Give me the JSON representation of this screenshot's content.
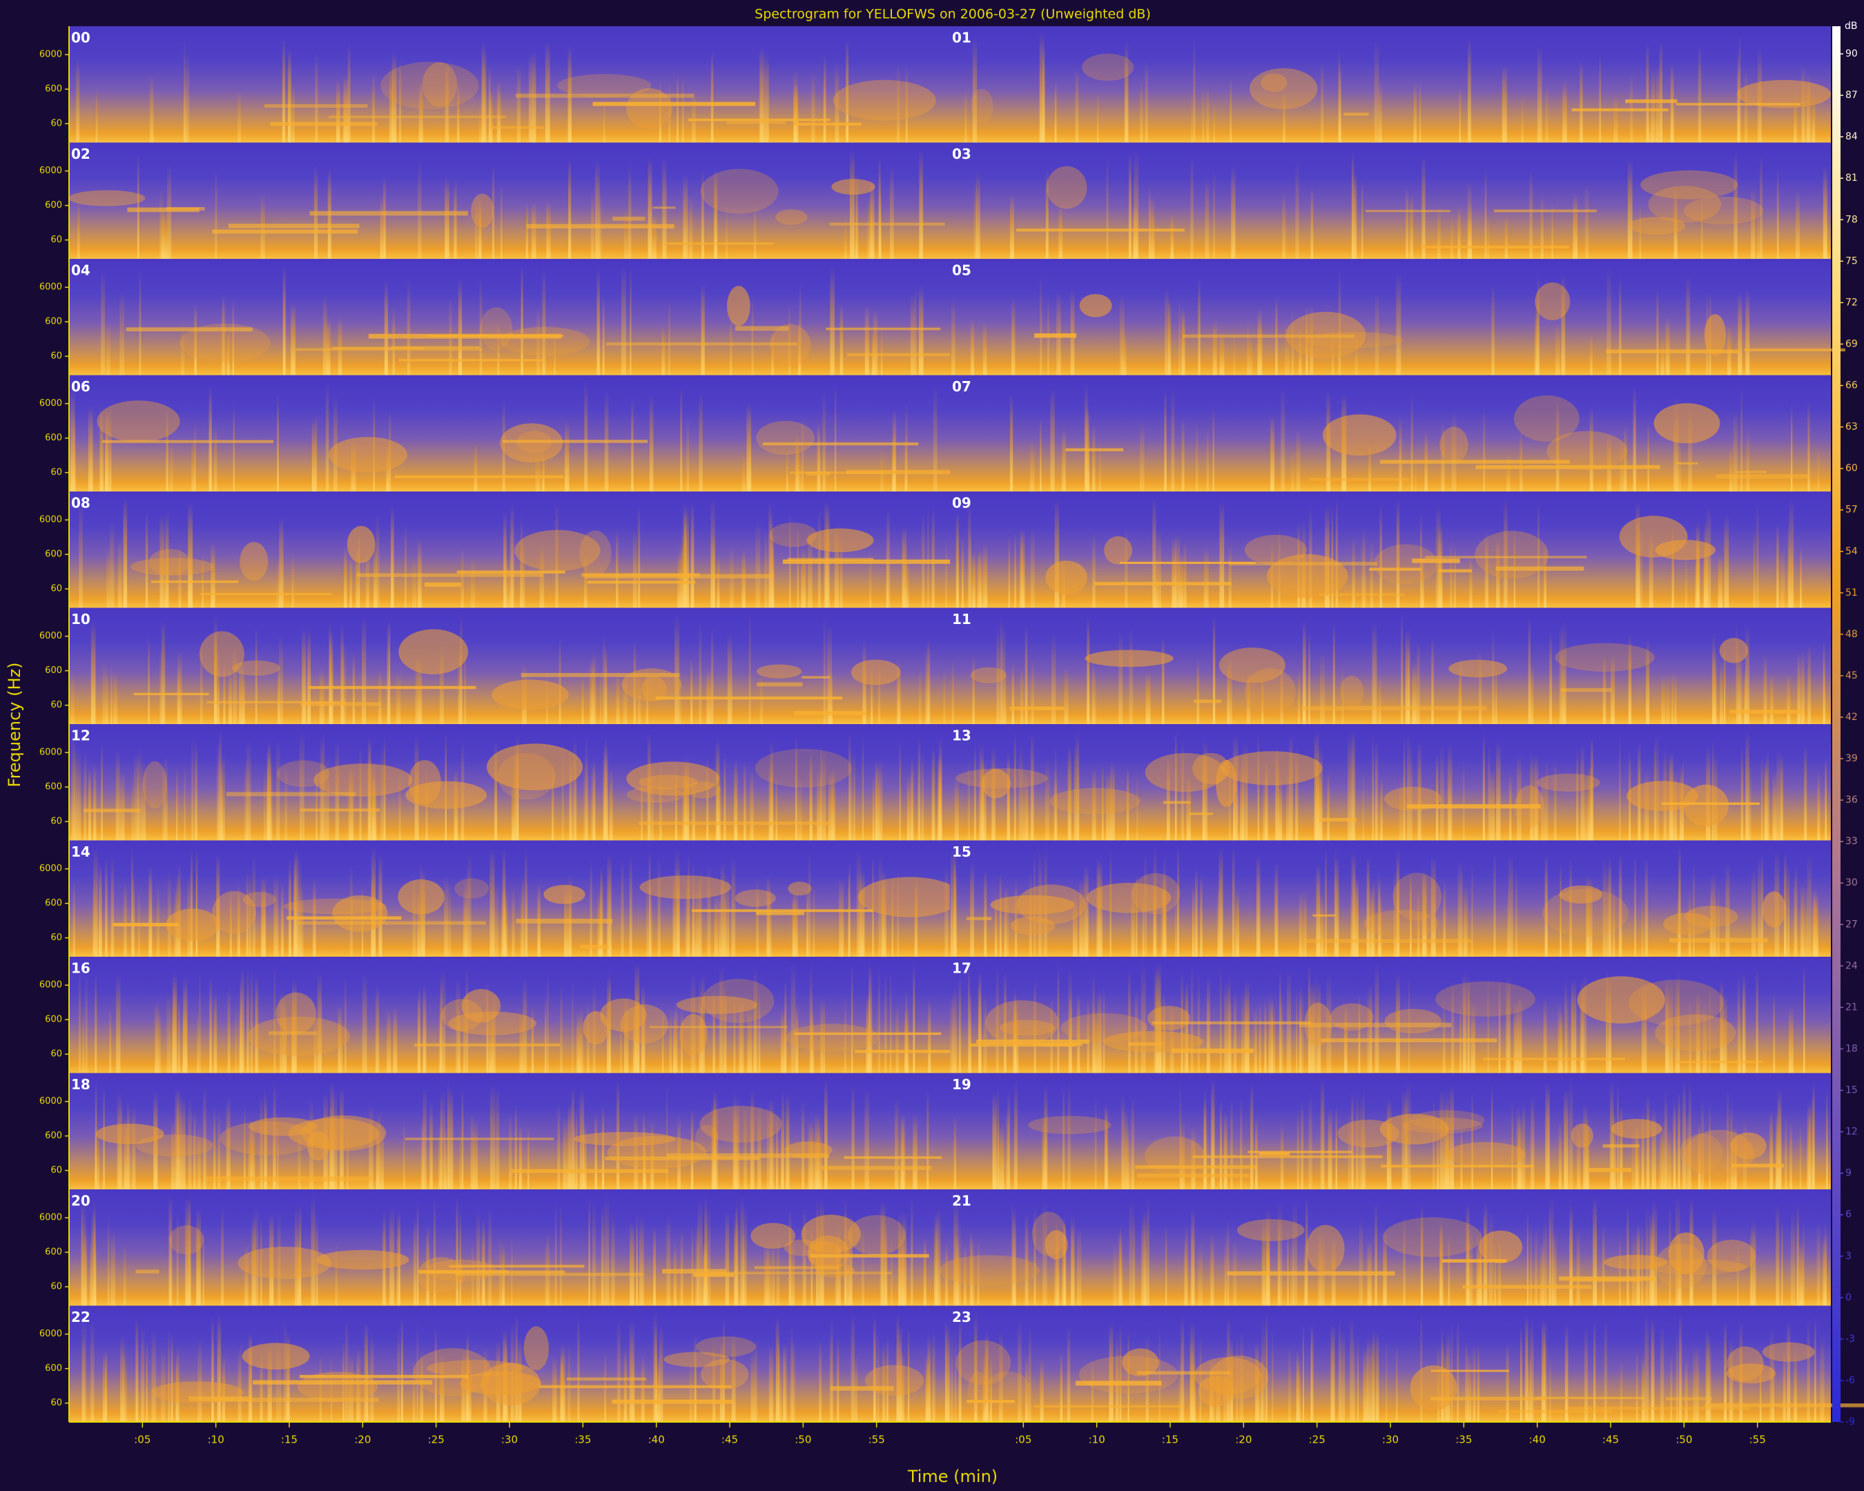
{
  "chart_data": {
    "type": "spectrogram",
    "title": "Spectrogram for YELLOFWS on 2006-03-27 (Unweighted dB)",
    "x_label": "Time (min)",
    "y_label": "Frequency (Hz)",
    "panels": [
      "00",
      "01",
      "02",
      "03",
      "04",
      "05",
      "06",
      "07",
      "08",
      "09",
      "10",
      "11",
      "12",
      "13",
      "14",
      "15",
      "16",
      "17",
      "18",
      "19",
      "20",
      "21",
      "22",
      "23"
    ],
    "xlim": [
      0,
      60
    ],
    "xticks": [
      {
        "value": 5,
        "label": ":05"
      },
      {
        "value": 10,
        "label": ":10"
      },
      {
        "value": 15,
        "label": ":15"
      },
      {
        "value": 20,
        "label": ":20"
      },
      {
        "value": 25,
        "label": ":25"
      },
      {
        "value": 30,
        "label": ":30"
      },
      {
        "value": 35,
        "label": ":35"
      },
      {
        "value": 40,
        "label": ":40"
      },
      {
        "value": 45,
        "label": ":45"
      },
      {
        "value": 50,
        "label": ":50"
      },
      {
        "value": 55,
        "label": ":55"
      }
    ],
    "ylim": [
      17,
      40000
    ],
    "yticks": [
      6000,
      600,
      60
    ],
    "log_y": true,
    "colorbar": {
      "label": "dB",
      "lim": [
        -9,
        92
      ],
      "ticks": [
        90,
        87,
        84,
        81,
        78,
        75,
        72,
        69,
        66,
        63,
        60,
        57,
        54,
        51,
        48,
        45,
        42,
        39,
        36,
        33,
        30,
        27,
        24,
        21,
        18,
        15,
        12,
        9,
        6,
        3,
        0,
        -3,
        -6,
        -9
      ]
    },
    "colormap": [
      "#2a2ad8",
      "#6a50c0",
      "#b07890",
      "#f0a020",
      "#ffd870",
      "#ffffff"
    ],
    "background": "#170b36",
    "text_color": "#e8d800"
  }
}
